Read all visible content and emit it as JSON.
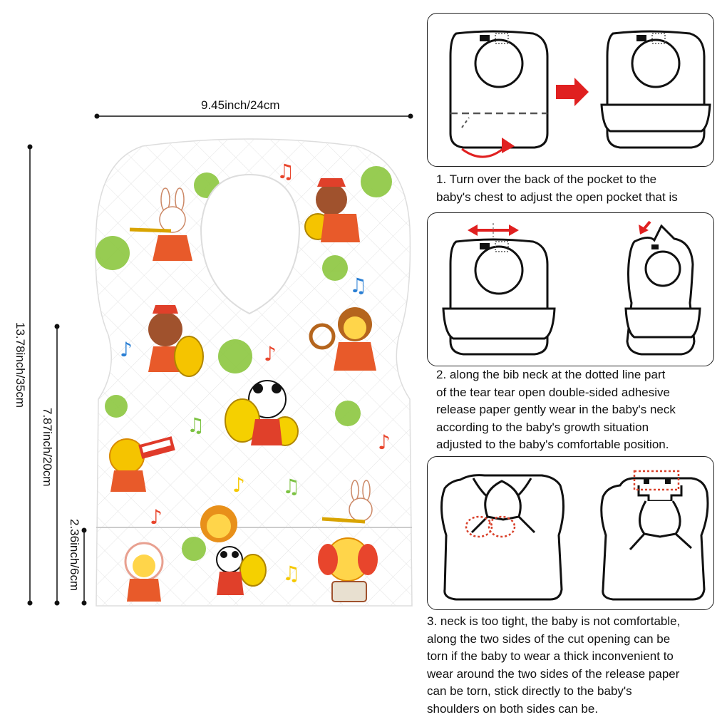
{
  "dimensions": {
    "width": "9.45inch/24cm",
    "height_total": "13.78inch/35cm",
    "height_body": "7.87inch/20cm",
    "pocket": "2.36inch/6cm"
  },
  "steps": [
    {
      "text": "1. Turn over the back of the pocket to the\nbaby's chest to adjust the open pocket that is"
    },
    {
      "text": "2. along the bib neck at the dotted line part\nof the tear tear open double-sided adhesive\nrelease paper gently wear in the baby's neck\naccording to the baby's growth situation\nadjusted to the baby's comfortable position."
    },
    {
      "text": "3. neck is too tight, the baby is not comfortable,\n along the two sides of the cut opening can be\ntorn if the baby to wear a thick inconvenient to\nwear around the two sides of the release paper\ncan be torn, stick directly to the baby's\nshoulders on both sides can be."
    }
  ],
  "colors": {
    "arrow_red": "#e02020",
    "dot_red": "#d9402a",
    "green_dot": "#8cc63f",
    "note_blue": "#2a7fd4",
    "note_red": "#e8452c",
    "note_green": "#7cc242",
    "note_yellow": "#f5c800"
  }
}
